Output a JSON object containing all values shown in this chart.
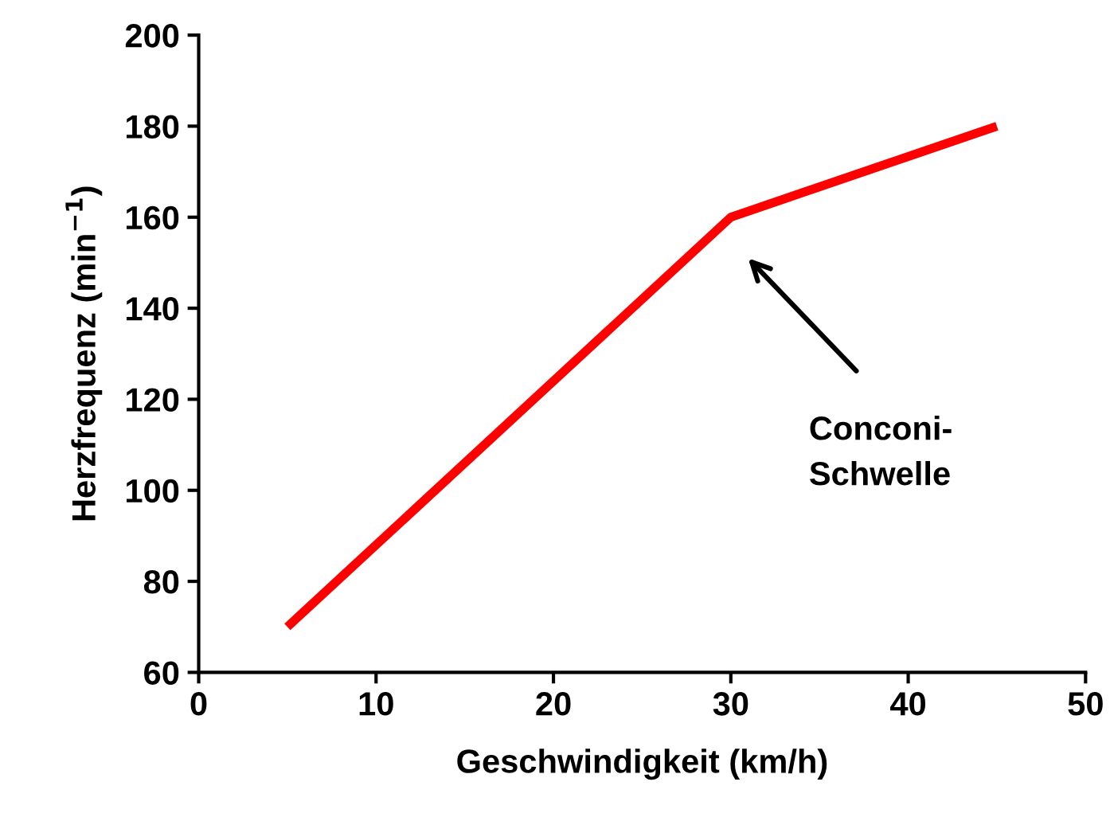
{
  "chart_data": {
    "type": "line",
    "xlabel": "Geschwindigkeit (km/h)",
    "ylabel": "Herzfrequenz (min$^{−1}$)",
    "x": [
      5,
      30,
      45
    ],
    "series": [
      {
        "color": "#ff0000",
        "values": [
          70,
          160,
          180
        ]
      }
    ],
    "xlim": [
      0,
      50
    ],
    "xticks": [
      0,
      10,
      20,
      30,
      40,
      50
    ],
    "ylim": [
      60,
      200
    ],
    "yticks": [
      60,
      80,
      100,
      120,
      140,
      160,
      180,
      200
    ],
    "grid": false,
    "marker": "none",
    "line_style": "solid",
    "annotations": [
      "Conconi-\nSchwelle"
    ]
  }
}
